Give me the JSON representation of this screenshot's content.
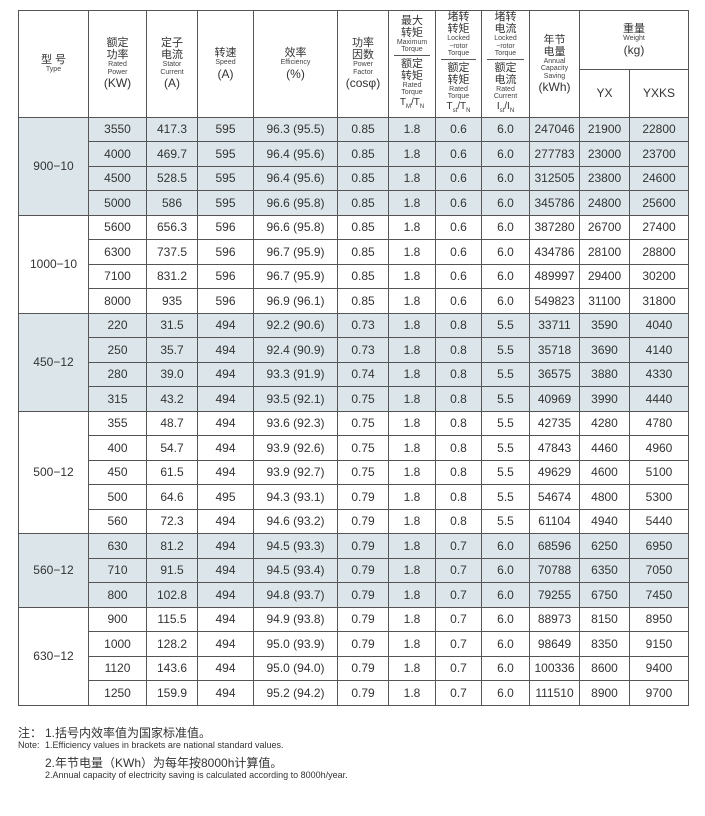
{
  "table": {
    "header": {
      "columns": [
        {
          "zh": [
            "型 号"
          ],
          "en": [
            "Type"
          ]
        },
        {
          "zh": [
            "额定",
            "功率"
          ],
          "en": [
            "Rated",
            "Power"
          ],
          "unit": "(KW)"
        },
        {
          "zh": [
            "定子",
            "电流"
          ],
          "en": [
            "Stator",
            "Current"
          ],
          "unit": "(A)"
        },
        {
          "zh": [
            "转速"
          ],
          "en": [
            "Speed"
          ],
          "unit": "(A)"
        },
        {
          "zh": [
            "效率"
          ],
          "en": [
            "Efficiency"
          ],
          "unit": "(%)"
        },
        {
          "zh": [
            "功率",
            "因数"
          ],
          "en": [
            "Power",
            "Factor"
          ],
          "unit": "(cosφ)"
        },
        {
          "top": {
            "zh": [
              "最大",
              "转矩"
            ],
            "en": [
              "Maximum",
              "Torque"
            ]
          },
          "bottom": {
            "zh": [
              "额定",
              "转矩"
            ],
            "en": [
              "Rated",
              "Torque"
            ],
            "formula": [
              "T",
              "M",
              "/T",
              "N"
            ]
          }
        },
        {
          "top": {
            "zh": [
              "堵转",
              "转矩"
            ],
            "en": [
              "Locked",
              "−rotor",
              "Torque"
            ]
          },
          "bottom": {
            "zh": [
              "额定",
              "转矩"
            ],
            "en": [
              "Rated",
              "Torque"
            ],
            "formula": [
              "T",
              "st",
              "/T",
              "N"
            ]
          }
        },
        {
          "top": {
            "zh": [
              "堵转",
              "电流"
            ],
            "en": [
              "Locked",
              "−rotor",
              "Torque"
            ]
          },
          "bottom": {
            "zh": [
              "额定",
              "电流"
            ],
            "en": [
              "Rated",
              "Current"
            ],
            "formula": [
              "I",
              "st",
              "/I",
              "N"
            ]
          }
        },
        {
          "zh": [
            "年节",
            "电量"
          ],
          "en": [
            "Annual",
            "Capacity",
            "Saving"
          ],
          "unit": "(kWh)"
        }
      ],
      "weight": {
        "zh": [
          "重量"
        ],
        "en": [
          "Weight"
        ],
        "unit": "(kg)",
        "sub": [
          "YX",
          "YXKS"
        ]
      }
    },
    "groups": [
      {
        "type": "900−10",
        "rows": [
          [
            "3550",
            "417.3",
            "595",
            "96.3 (95.5)",
            "0.85",
            "1.8",
            "0.6",
            "6.0",
            "247046",
            "21900",
            "22800"
          ],
          [
            "4000",
            "469.7",
            "595",
            "96.4 (95.6)",
            "0.85",
            "1.8",
            "0.6",
            "6.0",
            "277783",
            "23000",
            "23700"
          ],
          [
            "4500",
            "528.5",
            "595",
            "96.4 (95.6)",
            "0.85",
            "1.8",
            "0.6",
            "6.0",
            "312505",
            "23800",
            "24600"
          ],
          [
            "5000",
            "586",
            "595",
            "96.6 (95.8)",
            "0.85",
            "1.8",
            "0.6",
            "6.0",
            "345786",
            "24800",
            "25600"
          ]
        ]
      },
      {
        "type": "1000−10",
        "rows": [
          [
            "5600",
            "656.3",
            "596",
            "96.6 (95.8)",
            "0.85",
            "1.8",
            "0.6",
            "6.0",
            "387280",
            "26700",
            "27400"
          ],
          [
            "6300",
            "737.5",
            "596",
            "96.7 (95.9)",
            "0.85",
            "1.8",
            "0.6",
            "6.0",
            "434786",
            "28100",
            "28800"
          ],
          [
            "7100",
            "831.2",
            "596",
            "96.7 (95.9)",
            "0.85",
            "1.8",
            "0.6",
            "6.0",
            "489997",
            "29400",
            "30200"
          ],
          [
            "8000",
            "935",
            "596",
            "96.9 (96.1)",
            "0.85",
            "1.8",
            "0.6",
            "6.0",
            "549823",
            "31100",
            "31800"
          ]
        ]
      },
      {
        "type": "450−12",
        "rows": [
          [
            "220",
            "31.5",
            "494",
            "92.2 (90.6)",
            "0.73",
            "1.8",
            "0.8",
            "5.5",
            "33711",
            "3590",
            "4040"
          ],
          [
            "250",
            "35.7",
            "494",
            "92.4 (90.9)",
            "0.73",
            "1.8",
            "0.8",
            "5.5",
            "35718",
            "3690",
            "4140"
          ],
          [
            "280",
            "39.0",
            "494",
            "93.3 (91.9)",
            "0.74",
            "1.8",
            "0.8",
            "5.5",
            "36575",
            "3880",
            "4330"
          ],
          [
            "315",
            "43.2",
            "494",
            "93.5 (92.1)",
            "0.75",
            "1.8",
            "0.8",
            "5.5",
            "40969",
            "3990",
            "4440"
          ]
        ]
      },
      {
        "type": "500−12",
        "rows": [
          [
            "355",
            "48.7",
            "494",
            "93.6 (92.3)",
            "0.75",
            "1.8",
            "0.8",
            "5.5",
            "42735",
            "4280",
            "4780"
          ],
          [
            "400",
            "54.7",
            "494",
            "93.9 (92.6)",
            "0.75",
            "1.8",
            "0.8",
            "5.5",
            "47843",
            "4460",
            "4960"
          ],
          [
            "450",
            "61.5",
            "494",
            "93.9 (92.7)",
            "0.75",
            "1.8",
            "0.8",
            "5.5",
            "49629",
            "4600",
            "5100"
          ],
          [
            "500",
            "64.6",
            "495",
            "94.3 (93.1)",
            "0.79",
            "1.8",
            "0.8",
            "5.5",
            "54674",
            "4800",
            "5300"
          ],
          [
            "560",
            "72.3",
            "494",
            "94.6 (93.2)",
            "0.79",
            "1.8",
            "0.8",
            "5.5",
            "61104",
            "4940",
            "5440"
          ]
        ]
      },
      {
        "type": "560−12",
        "rows": [
          [
            "630",
            "81.2",
            "494",
            "94.5 (93.3)",
            "0.79",
            "1.8",
            "0.7",
            "6.0",
            "68596",
            "6250",
            "6950"
          ],
          [
            "710",
            "91.5",
            "494",
            "94.5 (93.4)",
            "0.79",
            "1.8",
            "0.7",
            "6.0",
            "70788",
            "6350",
            "7050"
          ],
          [
            "800",
            "102.8",
            "494",
            "94.8 (93.7)",
            "0.79",
            "1.8",
            "0.7",
            "6.0",
            "79255",
            "6750",
            "7450"
          ]
        ]
      },
      {
        "type": "630−12",
        "rows": [
          [
            "900",
            "115.5",
            "494",
            "94.9 (93.8)",
            "0.79",
            "1.8",
            "0.7",
            "6.0",
            "88973",
            "8150",
            "8950"
          ],
          [
            "1000",
            "128.2",
            "494",
            "95.0 (93.9)",
            "0.79",
            "1.8",
            "0.7",
            "6.0",
            "98649",
            "8350",
            "9150"
          ],
          [
            "1120",
            "143.6",
            "494",
            "95.0 (94.0)",
            "0.79",
            "1.8",
            "0.7",
            "6.0",
            "100336",
            "8600",
            "9400"
          ],
          [
            "1250",
            "159.9",
            "494",
            "95.2 (94.2)",
            "0.79",
            "1.8",
            "0.7",
            "6.0",
            "111510",
            "8900",
            "9700"
          ]
        ]
      }
    ]
  },
  "notes": {
    "zh_label": "注：",
    "en_label": "Note:",
    "items": [
      {
        "zh": "1.括号内效率值为国家标准值。",
        "en": "1.Efficiency values in brackets are national standard values."
      },
      {
        "zh": "2.年节电量（KWh）为每年按8000h计算值。",
        "en": "2.Annual capacity of electricity saving is calculated according to 8000h/year."
      }
    ]
  }
}
